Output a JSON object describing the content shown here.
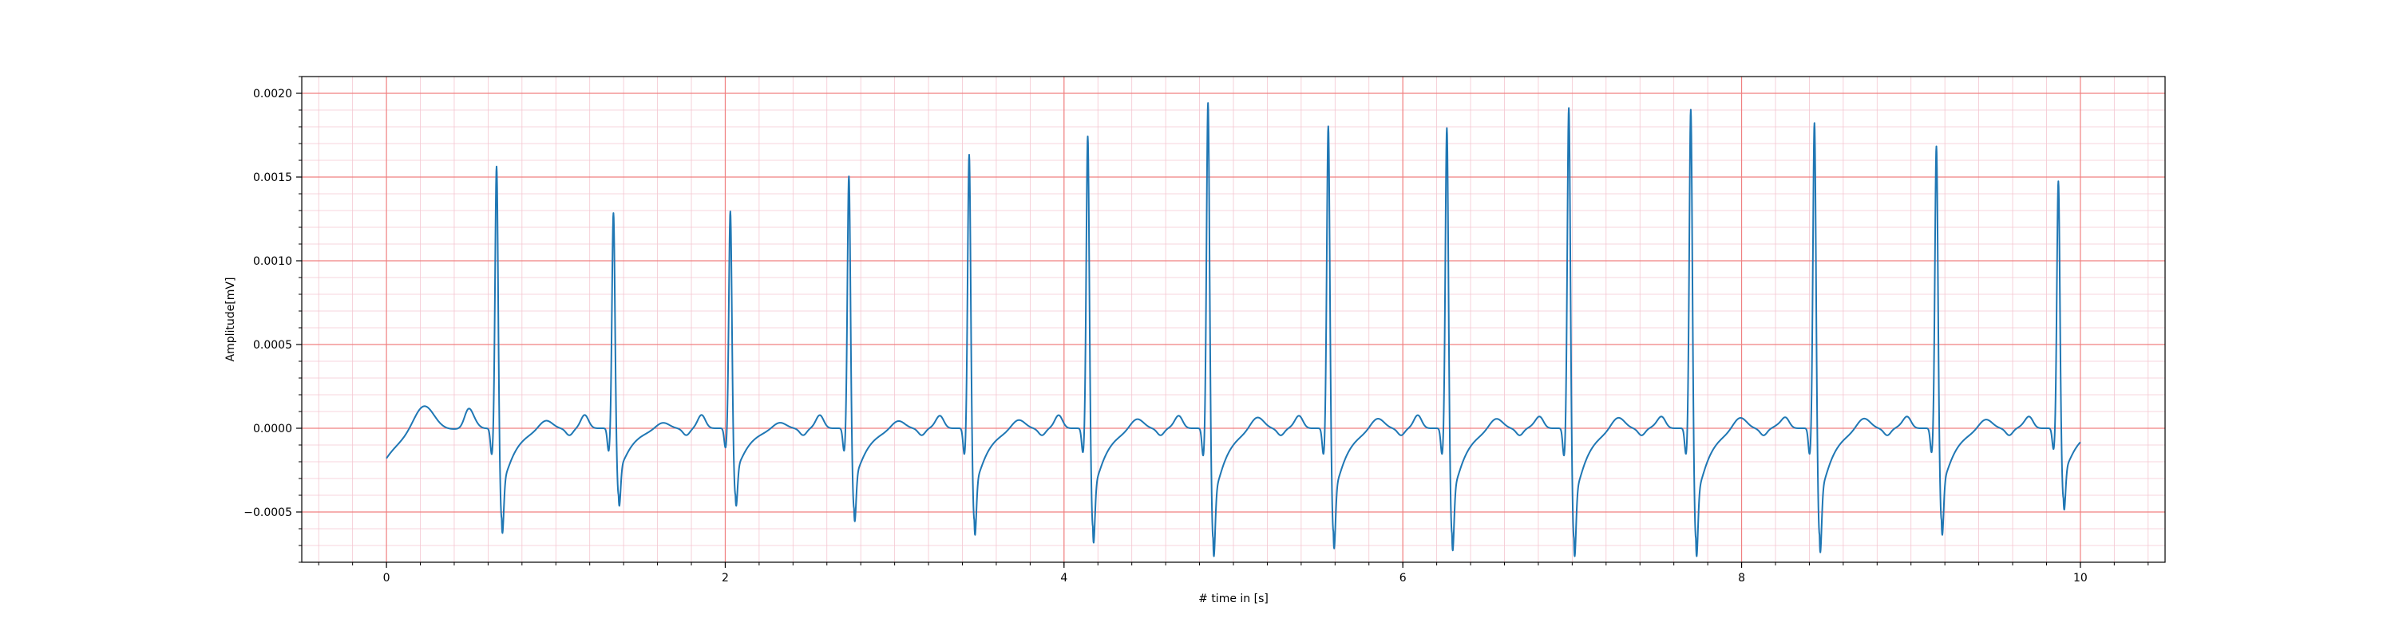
{
  "chart_data": {
    "type": "line",
    "title": "",
    "xlabel": "# time in [s]",
    "ylabel": "Amplitude[mV]",
    "xlim": [
      -0.5,
      10.5
    ],
    "ylim": [
      -0.0008,
      0.0021
    ],
    "x_ticks": [
      0,
      2,
      4,
      6,
      8,
      10
    ],
    "x_tick_labels": [
      "0",
      "2",
      "4",
      "6",
      "8",
      "10"
    ],
    "y_ticks": [
      -0.0005,
      0.0,
      0.0005,
      0.001,
      0.0015,
      0.002
    ],
    "y_tick_labels": [
      "−0.0005",
      "0.0000",
      "0.0005",
      "0.0010",
      "0.0015",
      "0.0020"
    ],
    "grid": {
      "major": true,
      "minor": true,
      "major_color": "#f08080",
      "minor_color": "#f4c6d0"
    },
    "legend": "none",
    "series": [
      {
        "color": "#1f77b4",
        "x_range": [
          0,
          10
        ],
        "beats": [
          {
            "t": 0.65,
            "r": 0.00157,
            "s": -0.00054,
            "q": -0.00016
          },
          {
            "t": 1.34,
            "r": 0.00129,
            "s": -0.0004,
            "q": -0.00014
          },
          {
            "t": 2.03,
            "r": 0.0013,
            "s": -0.0004,
            "q": -0.00012
          },
          {
            "t": 2.73,
            "r": 0.00151,
            "s": -0.00048,
            "q": -0.00014
          },
          {
            "t": 3.44,
            "r": 0.00164,
            "s": -0.00055,
            "q": -0.00016
          },
          {
            "t": 4.14,
            "r": 0.00175,
            "s": -0.00059,
            "q": -0.00015
          },
          {
            "t": 4.85,
            "r": 0.00195,
            "s": -0.00066,
            "q": -0.00017
          },
          {
            "t": 5.56,
            "r": 0.00181,
            "s": -0.00062,
            "q": -0.00016
          },
          {
            "t": 6.26,
            "r": 0.0018,
            "s": -0.00063,
            "q": -0.00016
          },
          {
            "t": 6.98,
            "r": 0.00192,
            "s": -0.00066,
            "q": -0.00017
          },
          {
            "t": 7.7,
            "r": 0.00191,
            "s": -0.00066,
            "q": -0.00016
          },
          {
            "t": 8.43,
            "r": 0.00183,
            "s": -0.00064,
            "q": -0.00016
          },
          {
            "t": 9.15,
            "r": 0.00169,
            "s": -0.00055,
            "q": -0.00015
          },
          {
            "t": 9.87,
            "r": 0.00148,
            "s": -0.00042,
            "q": -0.00013
          }
        ],
        "start_value": -0.00018,
        "end_value": -5e-05
      }
    ]
  }
}
